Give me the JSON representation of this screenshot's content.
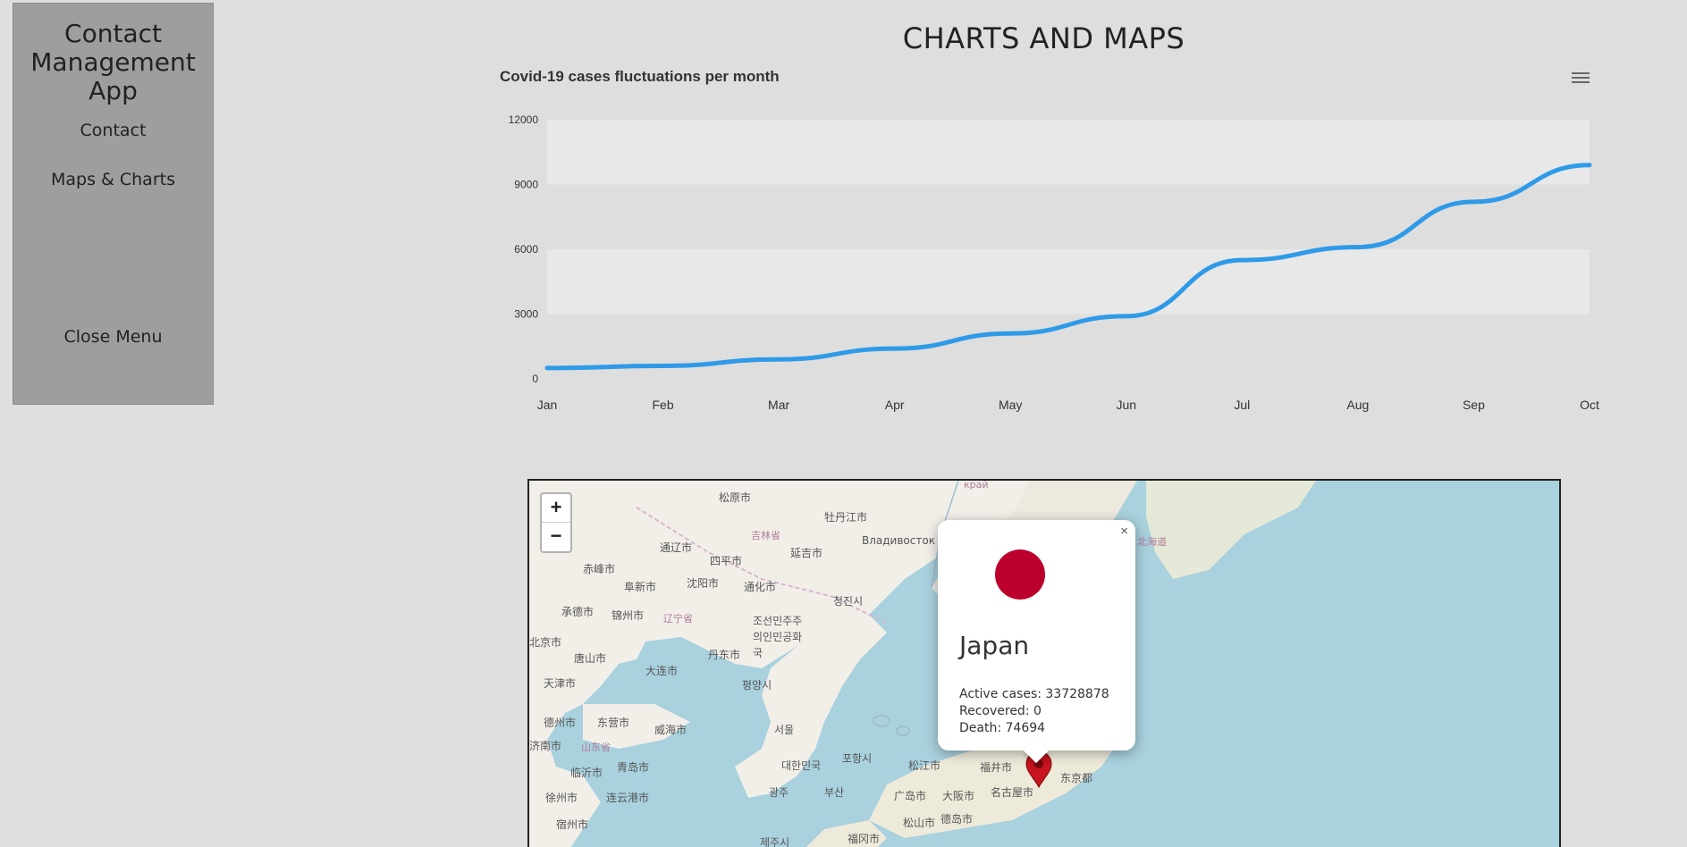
{
  "sidebar": {
    "title": "Contact Management App",
    "items": [
      {
        "label": "Contact"
      },
      {
        "label": "Maps & Charts"
      }
    ],
    "close_label": "Close Menu"
  },
  "page": {
    "title": "CHARTS AND MAPS"
  },
  "chart_data": {
    "type": "line",
    "title": "Covid-19 cases fluctuations per month",
    "xlabel": "",
    "ylabel": "",
    "categories": [
      "Jan",
      "Feb",
      "Mar",
      "Apr",
      "May",
      "Jun",
      "Jul",
      "Aug",
      "Sep",
      "Oct"
    ],
    "series": [
      {
        "values": [
          500,
          600,
          900,
          1400,
          2100,
          2900,
          5500,
          6100,
          8200,
          9900
        ]
      }
    ],
    "ylim": [
      0,
      12000
    ],
    "yticks": [
      0,
      3000,
      6000,
      9000,
      12000
    ],
    "grid": "alternating horizontal bands",
    "legend": "none",
    "line_color": "#2e9ae8",
    "menu_icon": "hamburger-icon"
  },
  "map": {
    "zoom_in": "+",
    "zoom_out": "−",
    "labels": [
      "松原市",
      "牡丹江市",
      "吉林省",
      "Владивосток",
      "通辽市",
      "四平市",
      "延吉市",
      "赤峰市",
      "阜新市",
      "沈阳市",
      "通化市",
      "청진시",
      "承德市",
      "锦州市",
      "辽宁省",
      "조선민주주의인민공화국",
      "北京市",
      "唐山市",
      "大连市",
      "丹东市",
      "평양시",
      "天津市",
      "德州市",
      "东营市",
      "威海市",
      "서울",
      "济南市",
      "山东省",
      "临沂市",
      "青岛市",
      "대한민국",
      "포항시",
      "松江市",
      "福井市",
      "东京都",
      "徐州市",
      "连云港市",
      "광주",
      "부산",
      "广岛市",
      "大阪市",
      "名古屋市",
      "宿州市",
      "松山市",
      "德岛市",
      "제주시",
      "福冈市",
      "北海道",
      "край"
    ],
    "popup": {
      "close": "×",
      "country": "Japan",
      "active_cases": "Active cases: 33728878",
      "recovered": "Recovered: 0",
      "death": "Death: 74694",
      "flag_color": "#bc002d"
    },
    "marker_color": "#c8141e",
    "sea_color": "#a9d1de",
    "land_color": "#f2efe9"
  }
}
